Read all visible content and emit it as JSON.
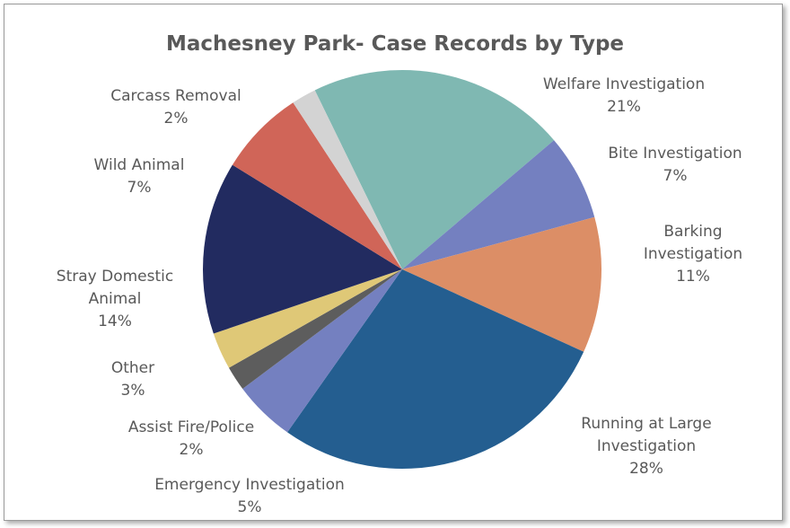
{
  "chart_data": {
    "type": "pie",
    "title": "Machesney Park- Case Records by Type",
    "categories": [
      "Welfare Investigation",
      "Bite Investigation",
      "Barking Investigation",
      "Running at Large Investigation",
      "Emergency Investigation",
      "Assist Fire/Police",
      "Other",
      "Stray Domestic Animal",
      "Wild Animal",
      "Carcass Removal"
    ],
    "values": [
      21,
      7,
      11,
      28,
      5,
      2,
      3,
      14,
      7,
      2
    ],
    "value_labels": [
      "21%",
      "7%",
      "11%",
      "28%",
      "5%",
      "2%",
      "3%",
      "14%",
      "7%",
      "2%"
    ],
    "colors": [
      "#7fb8b2",
      "#7480c0",
      "#dc8e66",
      "#245e90",
      "#7480c0",
      "#5d5d5d",
      "#dfc877",
      "#222b60",
      "#d06558",
      "#d3d3d3"
    ]
  }
}
